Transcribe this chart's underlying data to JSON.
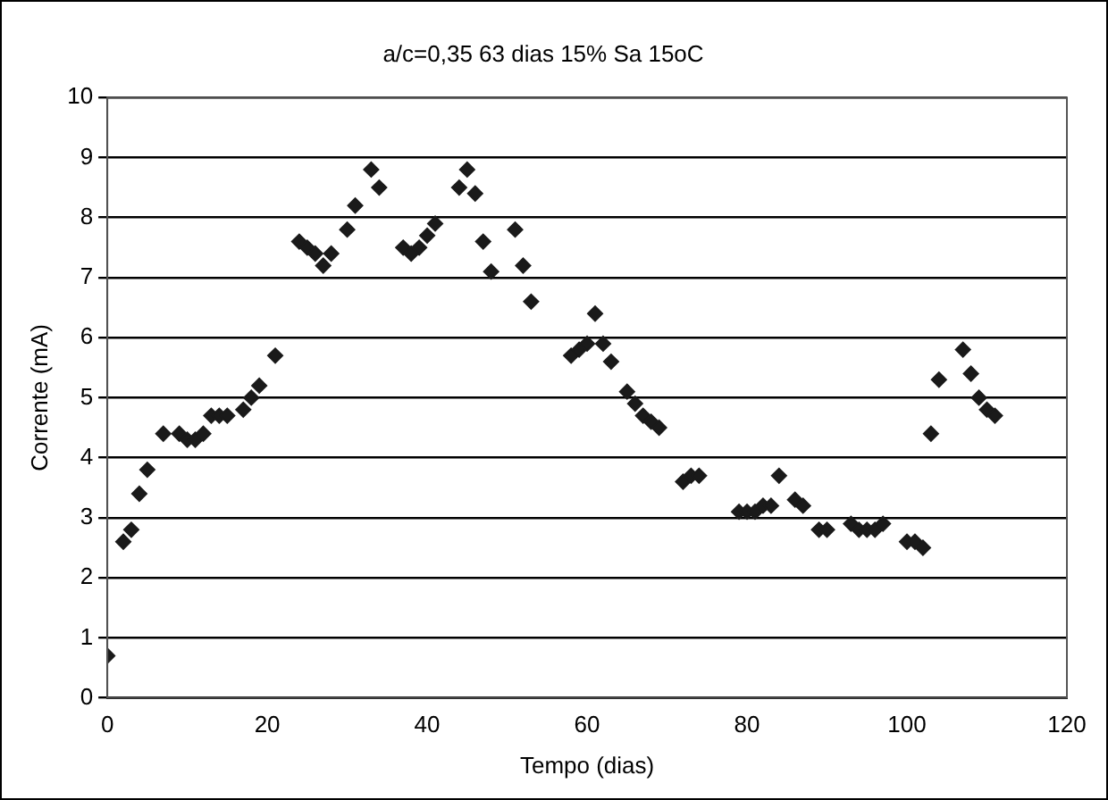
{
  "chart_data": {
    "type": "scatter",
    "title": "a/c=0,35 63 dias 15% Sa 15oC",
    "xlabel": "Tempo (dias)",
    "ylabel": "Corrente (mA)",
    "xlim": [
      0,
      120
    ],
    "xticks": [
      0,
      20,
      40,
      60,
      80,
      100,
      120
    ],
    "ylim": [
      0,
      10
    ],
    "yticks": [
      0,
      1,
      2,
      3,
      4,
      5,
      6,
      7,
      8,
      9,
      10
    ],
    "grid": "y",
    "legend": false,
    "marker": "diamond",
    "series": [
      {
        "color": "#1a1a1a",
        "x": [
          0,
          2,
          3,
          4,
          5,
          7,
          9,
          10,
          11,
          12,
          13,
          14,
          15,
          17,
          18,
          19,
          21,
          24,
          25,
          26,
          27,
          28,
          30,
          31,
          33,
          34,
          37,
          38,
          39,
          40,
          41,
          44,
          45,
          46,
          47,
          48,
          51,
          52,
          53,
          58,
          59,
          60,
          61,
          62,
          63,
          65,
          66,
          67,
          68,
          69,
          72,
          73,
          74,
          79,
          80,
          81,
          82,
          83,
          84,
          86,
          87,
          89,
          90,
          93,
          94,
          95,
          96,
          97,
          100,
          101,
          102,
          103,
          104,
          107,
          108,
          109,
          110,
          111
        ],
        "values": [
          0.7,
          2.6,
          2.8,
          3.4,
          3.8,
          4.4,
          4.4,
          4.3,
          4.3,
          4.4,
          4.7,
          4.7,
          4.7,
          4.8,
          5.0,
          5.2,
          5.7,
          7.6,
          7.5,
          7.4,
          7.2,
          7.4,
          7.8,
          8.2,
          8.8,
          8.5,
          7.5,
          7.4,
          7.5,
          7.7,
          7.9,
          8.5,
          8.8,
          8.4,
          7.6,
          7.1,
          7.8,
          7.2,
          6.6,
          5.7,
          5.8,
          5.9,
          6.4,
          5.9,
          5.6,
          5.1,
          4.9,
          4.7,
          4.6,
          4.5,
          3.6,
          3.7,
          3.7,
          3.1,
          3.1,
          3.1,
          3.2,
          3.2,
          3.7,
          3.3,
          3.2,
          2.8,
          2.8,
          2.9,
          2.8,
          2.8,
          2.8,
          2.9,
          2.6,
          2.6,
          2.5,
          4.4,
          5.3,
          5.8,
          5.4,
          5.0,
          4.8,
          4.7
        ]
      }
    ]
  }
}
